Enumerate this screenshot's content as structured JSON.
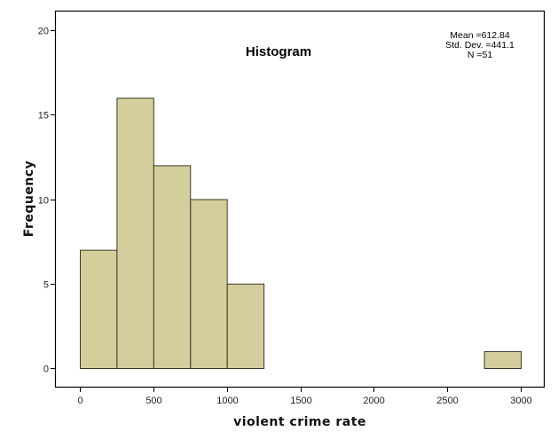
{
  "chart_data": {
    "type": "bar",
    "subtype": "histogram",
    "title": "Histogram",
    "xlabel": "violent crime rate",
    "ylabel": "Frequency",
    "bin_width": 250,
    "bins": [
      {
        "start": 0,
        "end": 250,
        "count": 7
      },
      {
        "start": 250,
        "end": 500,
        "count": 16
      },
      {
        "start": 500,
        "end": 750,
        "count": 12
      },
      {
        "start": 750,
        "end": 1000,
        "count": 10
      },
      {
        "start": 1000,
        "end": 1250,
        "count": 5
      },
      {
        "start": 2750,
        "end": 3000,
        "count": 1
      }
    ],
    "categories": [
      "0-250",
      "250-500",
      "500-750",
      "750-1000",
      "1000-1250",
      "2750-3000"
    ],
    "values": [
      7,
      16,
      12,
      10,
      5,
      1
    ],
    "xticks": [
      0,
      500,
      1000,
      1500,
      2000,
      2500,
      3000
    ],
    "yticks": [
      0,
      5,
      10,
      15,
      20
    ],
    "xlim": [
      0,
      3000
    ],
    "ylim": [
      0,
      20
    ],
    "grid": false,
    "bar_color": "#d3ce9b",
    "bar_edge_color": "#3a3a2a",
    "stats": {
      "mean_label": "Mean =612.84",
      "std_label": "Std. Dev. =441.1",
      "n_label": "N =51",
      "mean": 612.84,
      "std_dev": 441.1,
      "n": 51
    }
  }
}
